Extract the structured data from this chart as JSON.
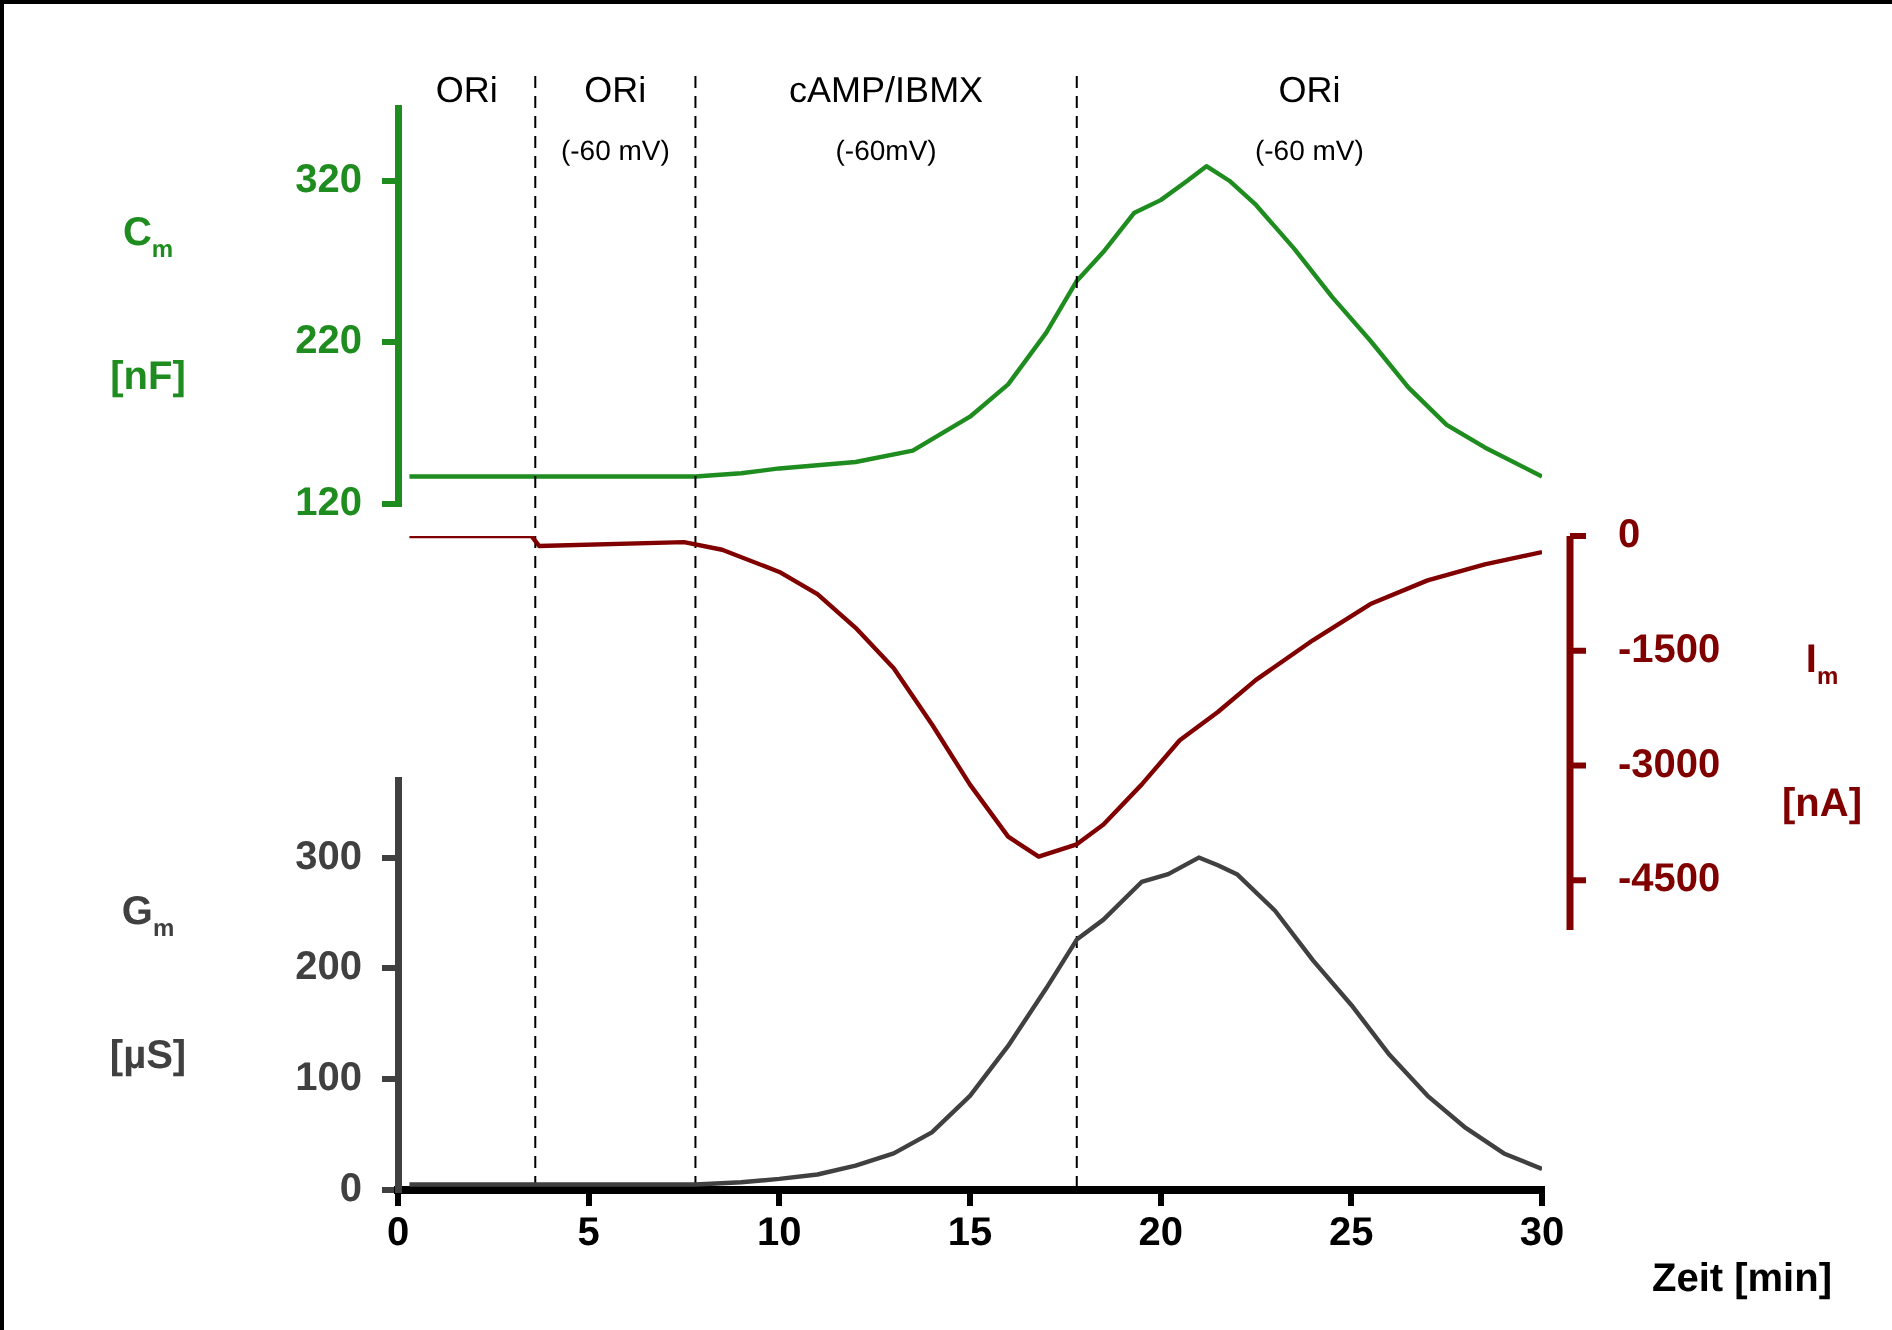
{
  "chart_data": [
    {
      "type": "line",
      "ylabel": "C$_{m}$ [nF]",
      "x": [
        0.3,
        3.6,
        7.8,
        9,
        10,
        12,
        13.5,
        15,
        16,
        17,
        17.8,
        18.5,
        19.3,
        20,
        20.7,
        21.2,
        21.8,
        22.5,
        23.5,
        24.5,
        25.5,
        26.5,
        27.5,
        28.5,
        30
      ],
      "series": [
        {
          "color": "#1e8c1e",
          "values": [
            137,
            137,
            137,
            139,
            142,
            146,
            153,
            174,
            194,
            226,
            258,
            276,
            300,
            308,
            320,
            329,
            320,
            305,
            278,
            248,
            221,
            192,
            169,
            155,
            137
          ]
        }
      ],
      "xlim": [
        0,
        30
      ],
      "ylim": [
        120,
        365
      ],
      "yticks": [
        120,
        220,
        320
      ],
      "tick_labels": "y",
      "grid": false,
      "legend": false,
      "marker": "none",
      "line_style": "solid",
      "ref_lines": [
        {
          "axis": "x",
          "value": 3.6,
          "line_style": "dashed"
        },
        {
          "axis": "x",
          "value": 7.8,
          "line_style": "dashed"
        },
        {
          "axis": "x",
          "value": 17.8,
          "line_style": "dashed"
        }
      ],
      "annotations": [
        "ORi",
        "ORi\n(-60 mV)",
        "cAMP/IBMX\n(-60mV)",
        "ORi\n(-60 mV)"
      ]
    },
    {
      "type": "line",
      "ylabel": "I$_{m}$ [nA]",
      "x": [
        0.3,
        3.5,
        3.7,
        7.5,
        8.5,
        10,
        11,
        12,
        13,
        14,
        15,
        16,
        16.8,
        17.8,
        18.5,
        19.5,
        20.5,
        21.5,
        22.5,
        24,
        25.5,
        27,
        28.5,
        30
      ],
      "series": [
        {
          "color": "#800000",
          "axis": "y2",
          "values": [
            0,
            0,
            -130,
            -80,
            -180,
            -470,
            -760,
            -1200,
            -1730,
            -2460,
            -3250,
            -3930,
            -4190,
            -4030,
            -3770,
            -3250,
            -2670,
            -2300,
            -1880,
            -1360,
            -890,
            -580,
            -370,
            -210
          ]
        }
      ],
      "xlim": [
        0,
        30
      ],
      "y2lim": [
        -5150,
        0
      ],
      "y2ticks": [
        0,
        -1500,
        -3000,
        -4500
      ],
      "tick_labels": "y",
      "grid": false,
      "legend": false,
      "marker": "none",
      "line_style": "solid"
    },
    {
      "type": "line",
      "ylabel": "G$_{m}$ [µS]",
      "xlabel": "Zeit [min]",
      "x": [
        0.3,
        7.8,
        9,
        10,
        11,
        12,
        13,
        14,
        15,
        16,
        17,
        17.8,
        18.5,
        19.5,
        20.2,
        21,
        21.5,
        22,
        23,
        24,
        25,
        26,
        27,
        28,
        29,
        30
      ],
      "series": [
        {
          "color": "#404040",
          "values": [
            5,
            5,
            7,
            10,
            14,
            22,
            33,
            52,
            85,
            130,
            182,
            226,
            244,
            278,
            285,
            300,
            293,
            285,
            252,
            207,
            167,
            122,
            85,
            56,
            33,
            19
          ]
        }
      ],
      "xlim": [
        0,
        30
      ],
      "xticks": [
        0,
        5,
        10,
        15,
        20,
        25,
        30
      ],
      "ylim": [
        0,
        370
      ],
      "yticks": [
        0,
        100,
        200,
        300
      ],
      "grid": false,
      "legend": false,
      "marker": "none",
      "line_style": "solid"
    }
  ]
}
